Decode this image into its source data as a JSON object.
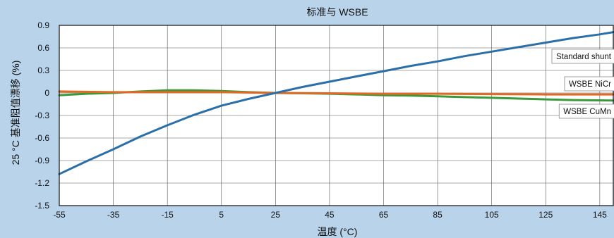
{
  "chart_data": {
    "type": "line",
    "title": "标准与 WSBE",
    "xlabel": "温度 (°C)",
    "ylabel": "25 °C 基准阻值漂移 (%)",
    "xlim": [
      -55,
      150
    ],
    "ylim": [
      -1.5,
      0.9
    ],
    "x_ticks": [
      -55,
      -35,
      -15,
      5,
      25,
      45,
      65,
      85,
      105,
      125,
      145
    ],
    "y_ticks": [
      0.9,
      0.6,
      0.3,
      0,
      -0.3,
      -0.6,
      -0.9,
      -1.2,
      -1.5
    ],
    "grid": true,
    "series": [
      {
        "name": "Standard shunt",
        "color": "#2b6fa8",
        "x": [
          -55,
          -45,
          -35,
          -25,
          -15,
          -5,
          5,
          15,
          25,
          35,
          45,
          55,
          65,
          75,
          85,
          95,
          105,
          115,
          125,
          135,
          145,
          150
        ],
        "y": [
          -1.08,
          -0.91,
          -0.75,
          -0.58,
          -0.43,
          -0.29,
          -0.17,
          -0.08,
          0.0,
          0.08,
          0.15,
          0.22,
          0.29,
          0.36,
          0.42,
          0.49,
          0.55,
          0.61,
          0.67,
          0.73,
          0.78,
          0.81
        ]
      },
      {
        "name": "WSBE NiCr",
        "color": "#e06a24",
        "x": [
          -55,
          -35,
          -15,
          5,
          25,
          45,
          65,
          85,
          105,
          125,
          150
        ],
        "y": [
          0.02,
          0.01,
          0.01,
          0.01,
          0.0,
          -0.005,
          -0.01,
          -0.01,
          -0.015,
          -0.02,
          -0.02
        ]
      },
      {
        "name": "WSBE CuMn",
        "color": "#3a9a3a",
        "x": [
          -55,
          -45,
          -35,
          -25,
          -15,
          -5,
          5,
          15,
          25,
          35,
          45,
          55,
          65,
          75,
          85,
          95,
          105,
          115,
          125,
          135,
          150
        ],
        "y": [
          -0.03,
          -0.01,
          0.0,
          0.02,
          0.035,
          0.035,
          0.025,
          0.01,
          0.0,
          -0.005,
          -0.01,
          -0.02,
          -0.03,
          -0.035,
          -0.045,
          -0.055,
          -0.065,
          -0.075,
          -0.085,
          -0.095,
          -0.1
        ]
      }
    ],
    "legend": {
      "placement": "right",
      "items": [
        "Standard shunt",
        "WSBE NiCr",
        "WSBE CuMn"
      ]
    }
  }
}
